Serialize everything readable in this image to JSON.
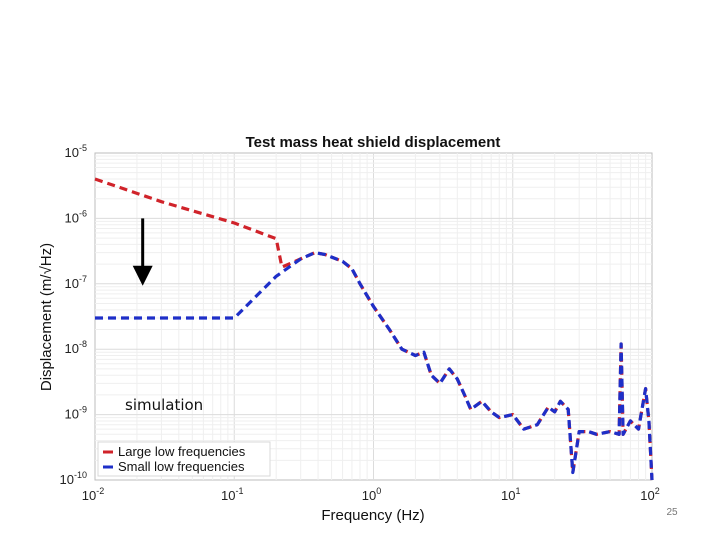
{
  "slide": {
    "page_number": "25"
  },
  "chart_data": {
    "type": "line",
    "title": "Test mass heat shield displacement",
    "xlabel": "Frequency (Hz)",
    "ylabel": "Displacement (m/√Hz)",
    "x_scale": "log",
    "y_scale": "log",
    "xlim": [
      0.01,
      100
    ],
    "ylim": [
      1e-10,
      1e-05
    ],
    "x_ticks": [
      {
        "value": 0.01,
        "base": "10",
        "exp": "-2"
      },
      {
        "value": 0.1,
        "base": "10",
        "exp": "-1"
      },
      {
        "value": 1,
        "base": "10",
        "exp": "0"
      },
      {
        "value": 10,
        "base": "10",
        "exp": "1"
      },
      {
        "value": 100,
        "base": "10",
        "exp": "2"
      }
    ],
    "y_ticks": [
      {
        "value": 1e-10,
        "base": "10",
        "exp": "-10"
      },
      {
        "value": 1e-09,
        "base": "10",
        "exp": "-9"
      },
      {
        "value": 1e-08,
        "base": "10",
        "exp": "-8"
      },
      {
        "value": 1e-07,
        "base": "10",
        "exp": "-7"
      },
      {
        "value": 1e-06,
        "base": "10",
        "exp": "-6"
      },
      {
        "value": 1e-05,
        "base": "10",
        "exp": "-5"
      }
    ],
    "grid": true,
    "legend_position": "bottom-left",
    "annotation": "simulation",
    "arrow": {
      "x": 0.022,
      "y_from": 1e-06,
      "y_to": 1e-07,
      "color": "#000000"
    },
    "series": [
      {
        "name": "Large low frequencies",
        "color": "#d0232a",
        "dash": "dashed",
        "points": [
          [
            0.01,
            4e-06
          ],
          [
            0.03,
            1.8e-06
          ],
          [
            0.1,
            8.5e-07
          ],
          [
            0.2,
            4.9e-07
          ],
          [
            0.22,
            1.8e-07
          ],
          [
            0.3,
            2.4e-07
          ],
          [
            0.38,
            3e-07
          ],
          [
            0.45,
            2.8e-07
          ],
          [
            0.6,
            2.2e-07
          ],
          [
            0.7,
            1.7e-07
          ],
          [
            0.8,
            1e-07
          ],
          [
            1.0,
            4.5e-08
          ],
          [
            1.3,
            2e-08
          ],
          [
            1.6,
            1e-08
          ],
          [
            2.0,
            8e-09
          ],
          [
            2.3,
            9e-09
          ],
          [
            2.6,
            4e-09
          ],
          [
            3.0,
            3e-09
          ],
          [
            3.5,
            5e-09
          ],
          [
            4.0,
            3.5e-09
          ],
          [
            4.5,
            2e-09
          ],
          [
            5.0,
            1.2e-09
          ],
          [
            6.0,
            1.6e-09
          ],
          [
            7.0,
            1.1e-09
          ],
          [
            8.0,
            9e-10
          ],
          [
            10.0,
            1e-09
          ],
          [
            12.0,
            6e-10
          ],
          [
            15.0,
            7e-10
          ],
          [
            18.0,
            1.3e-09
          ],
          [
            20.0,
            1.1e-09
          ],
          [
            22.0,
            1.6e-09
          ],
          [
            25.0,
            1.2e-09
          ],
          [
            27.0,
            1.3e-10
          ],
          [
            30.0,
            5.5e-10
          ],
          [
            35.0,
            5.5e-10
          ],
          [
            40.0,
            5e-10
          ],
          [
            50.0,
            5.5e-10
          ],
          [
            58.0,
            5e-10
          ],
          [
            60.0,
            1.2e-08
          ],
          [
            62.0,
            5e-10
          ],
          [
            70.0,
            8e-10
          ],
          [
            80.0,
            6e-10
          ],
          [
            90.0,
            2.5e-09
          ],
          [
            95.0,
            8e-10
          ],
          [
            100.0,
            1e-10
          ]
        ]
      },
      {
        "name": "Small low frequencies",
        "color": "#1e2fc8",
        "dash": "dashed",
        "points": [
          [
            0.01,
            3e-08
          ],
          [
            0.1,
            3e-08
          ],
          [
            0.2,
            1.3e-07
          ],
          [
            0.3,
            2.4e-07
          ],
          [
            0.38,
            3e-07
          ],
          [
            0.45,
            2.8e-07
          ],
          [
            0.6,
            2.2e-07
          ],
          [
            0.7,
            1.7e-07
          ],
          [
            0.8,
            1e-07
          ],
          [
            1.0,
            4.5e-08
          ],
          [
            1.3,
            2e-08
          ],
          [
            1.6,
            1e-08
          ],
          [
            2.0,
            8e-09
          ],
          [
            2.3,
            9e-09
          ],
          [
            2.6,
            4e-09
          ],
          [
            3.0,
            3e-09
          ],
          [
            3.5,
            5e-09
          ],
          [
            4.0,
            3.5e-09
          ],
          [
            4.5,
            2e-09
          ],
          [
            5.0,
            1.2e-09
          ],
          [
            6.0,
            1.6e-09
          ],
          [
            7.0,
            1.1e-09
          ],
          [
            8.0,
            9e-10
          ],
          [
            10.0,
            1e-09
          ],
          [
            12.0,
            6e-10
          ],
          [
            15.0,
            7e-10
          ],
          [
            18.0,
            1.3e-09
          ],
          [
            20.0,
            1.1e-09
          ],
          [
            22.0,
            1.6e-09
          ],
          [
            25.0,
            1.2e-09
          ],
          [
            27.0,
            1.3e-10
          ],
          [
            30.0,
            5.5e-10
          ],
          [
            35.0,
            5.5e-10
          ],
          [
            40.0,
            5e-10
          ],
          [
            50.0,
            5.5e-10
          ],
          [
            58.0,
            5e-10
          ],
          [
            60.0,
            1.2e-08
          ],
          [
            62.0,
            5e-10
          ],
          [
            70.0,
            8e-10
          ],
          [
            80.0,
            6e-10
          ],
          [
            90.0,
            2.5e-09
          ],
          [
            95.0,
            8e-10
          ],
          [
            100.0,
            1e-10
          ]
        ]
      }
    ]
  }
}
